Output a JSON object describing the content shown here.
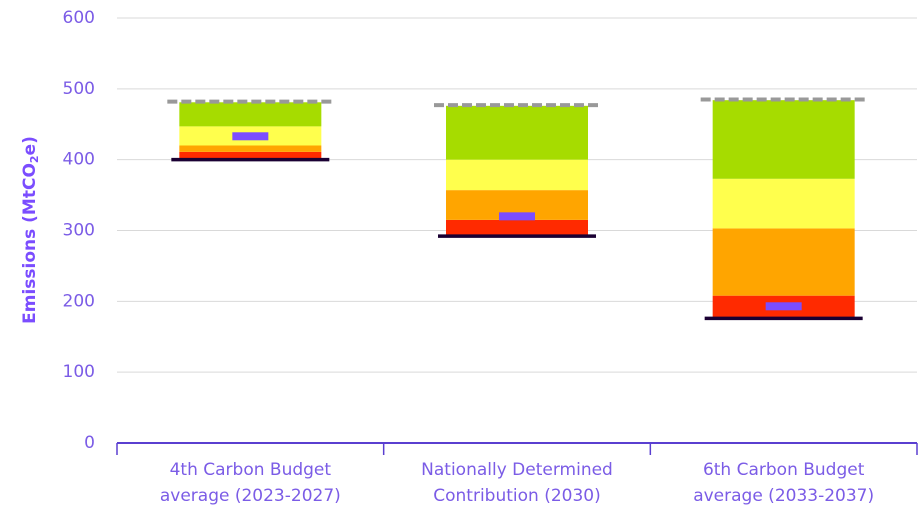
{
  "chart_data": {
    "type": "floating_stacked_bar",
    "y_label_parts": [
      "Emissions (MtCO",
      "2",
      "e)"
    ],
    "categories": [
      [
        "4th Carbon Budget",
        "average (2023-2027)"
      ],
      [
        "Nationally Determined",
        "Contribution (2030)"
      ],
      [
        "6th Carbon Budget",
        "average (2033-2037)"
      ]
    ],
    "floor": {
      "color": "#1a0033",
      "values": [
        400,
        292,
        176
      ]
    },
    "series": [
      {
        "color": "#ff2a00",
        "values": [
          11,
          23,
          32
        ]
      },
      {
        "color": "#ffa500",
        "values": [
          9,
          42,
          95
        ]
      },
      {
        "color": "#ffff4d",
        "values": [
          27,
          43,
          70
        ]
      },
      {
        "color": "#a6dc00",
        "values": [
          34,
          76,
          111
        ]
      }
    ],
    "ceiling": {
      "color": "#999999",
      "values": [
        482,
        477,
        485
      ]
    },
    "marker": {
      "color": "#7b4dff",
      "values": [
        433,
        320,
        193
      ]
    },
    "ylim": [
      0,
      600
    ],
    "yticks": [
      0,
      100,
      200,
      300,
      400,
      500,
      600
    ],
    "grid": true
  }
}
